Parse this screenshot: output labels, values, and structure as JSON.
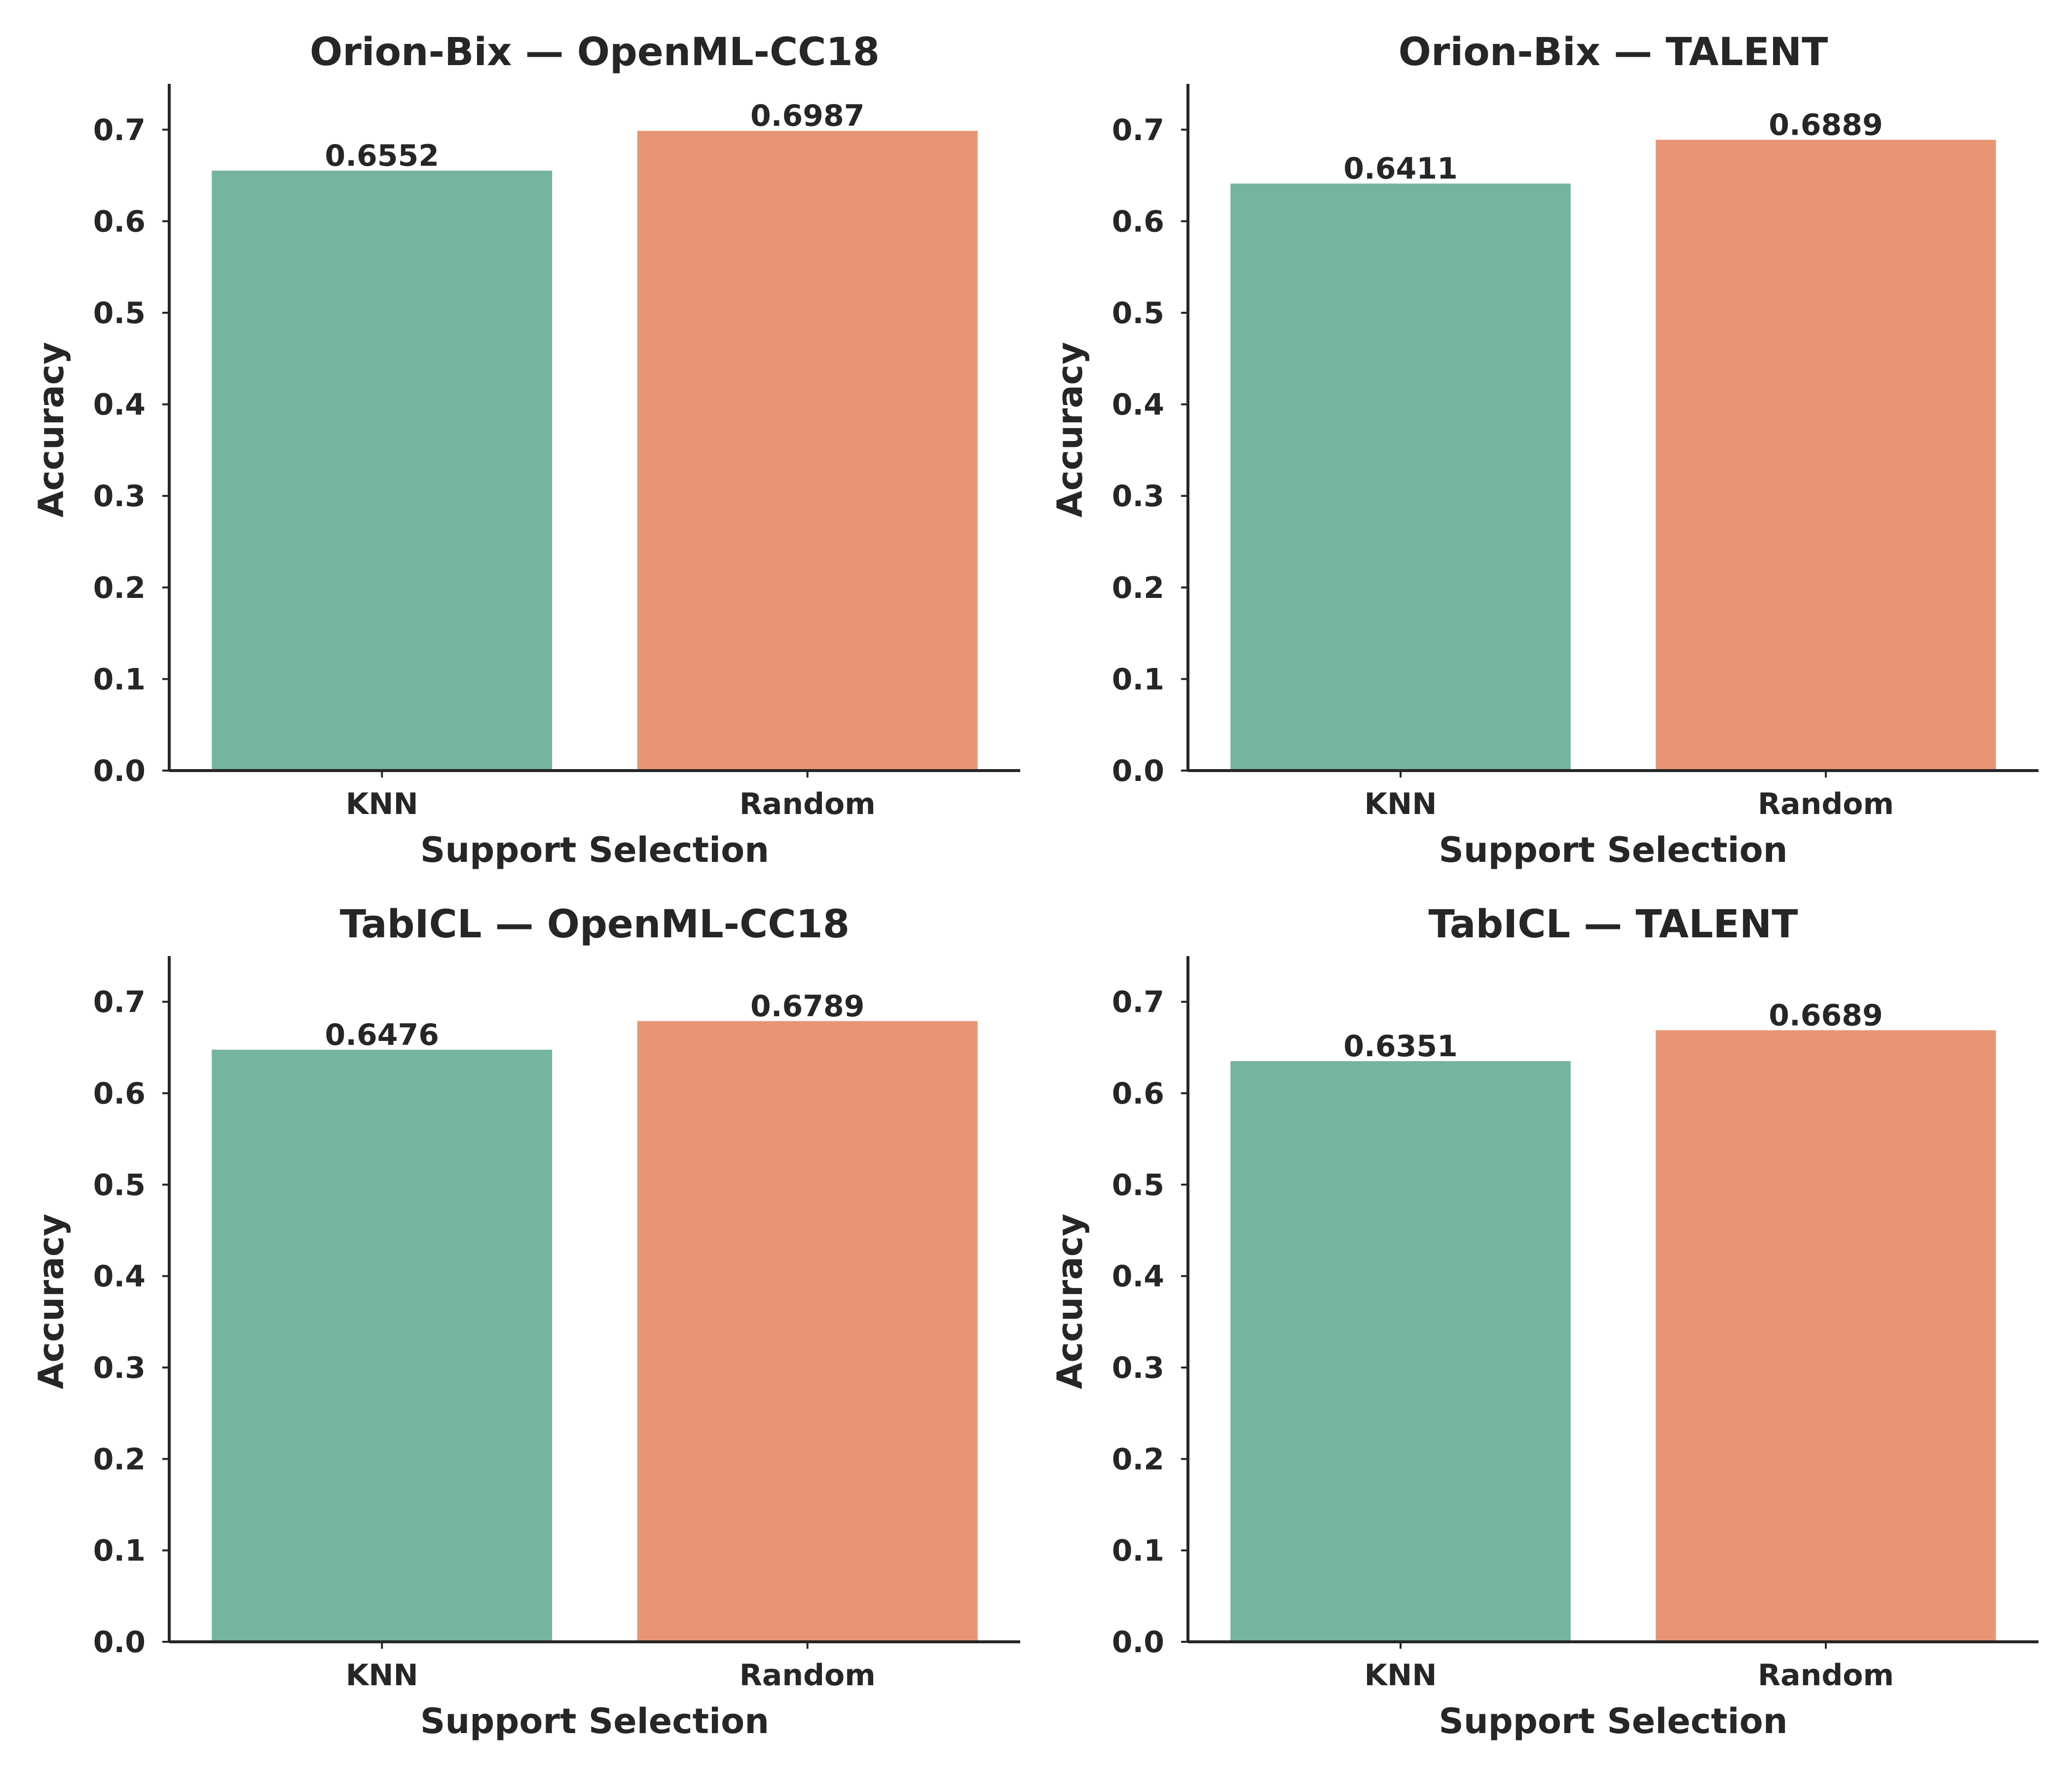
{
  "chart_data": [
    {
      "type": "bar",
      "title": "Orion-Bix — OpenML-CC18",
      "xlabel": "Support Selection",
      "ylabel": "Accuracy",
      "categories": [
        "KNN",
        "Random"
      ],
      "values": [
        0.6552,
        0.6987
      ],
      "value_labels": [
        "0.6552",
        "0.6987"
      ],
      "ylim": [
        0,
        0.75
      ],
      "yticks": [
        0.0,
        0.1,
        0.2,
        0.3,
        0.4,
        0.5,
        0.6,
        0.7
      ],
      "ytick_labels": [
        "0.0",
        "0.1",
        "0.2",
        "0.3",
        "0.4",
        "0.5",
        "0.6",
        "0.7"
      ],
      "colors": [
        "#75b4a0",
        "#e89575"
      ],
      "grid": false
    },
    {
      "type": "bar",
      "title": "Orion-Bix — TALENT",
      "xlabel": "Support Selection",
      "ylabel": "Accuracy",
      "categories": [
        "KNN",
        "Random"
      ],
      "values": [
        0.6411,
        0.6889
      ],
      "value_labels": [
        "0.6411",
        "0.6889"
      ],
      "ylim": [
        0,
        0.75
      ],
      "yticks": [
        0.0,
        0.1,
        0.2,
        0.3,
        0.4,
        0.5,
        0.6,
        0.7
      ],
      "ytick_labels": [
        "0.0",
        "0.1",
        "0.2",
        "0.3",
        "0.4",
        "0.5",
        "0.6",
        "0.7"
      ],
      "colors": [
        "#75b4a0",
        "#e89575"
      ],
      "grid": false
    },
    {
      "type": "bar",
      "title": "TabICL — OpenML-CC18",
      "xlabel": "Support Selection",
      "ylabel": "Accuracy",
      "categories": [
        "KNN",
        "Random"
      ],
      "values": [
        0.6476,
        0.6789
      ],
      "value_labels": [
        "0.6476",
        "0.6789"
      ],
      "ylim": [
        0,
        0.75
      ],
      "yticks": [
        0.0,
        0.1,
        0.2,
        0.3,
        0.4,
        0.5,
        0.6,
        0.7
      ],
      "ytick_labels": [
        "0.0",
        "0.1",
        "0.2",
        "0.3",
        "0.4",
        "0.5",
        "0.6",
        "0.7"
      ],
      "colors": [
        "#75b4a0",
        "#e89575"
      ],
      "grid": false
    },
    {
      "type": "bar",
      "title": "TabICL — TALENT",
      "xlabel": "Support Selection",
      "ylabel": "Accuracy",
      "categories": [
        "KNN",
        "Random"
      ],
      "values": [
        0.6351,
        0.6689
      ],
      "value_labels": [
        "0.6351",
        "0.6689"
      ],
      "ylim": [
        0,
        0.75
      ],
      "yticks": [
        0.0,
        0.1,
        0.2,
        0.3,
        0.4,
        0.5,
        0.6,
        0.7
      ],
      "ytick_labels": [
        "0.0",
        "0.1",
        "0.2",
        "0.3",
        "0.4",
        "0.5",
        "0.6",
        "0.7"
      ],
      "colors": [
        "#75b4a0",
        "#e89575"
      ],
      "grid": false
    }
  ]
}
